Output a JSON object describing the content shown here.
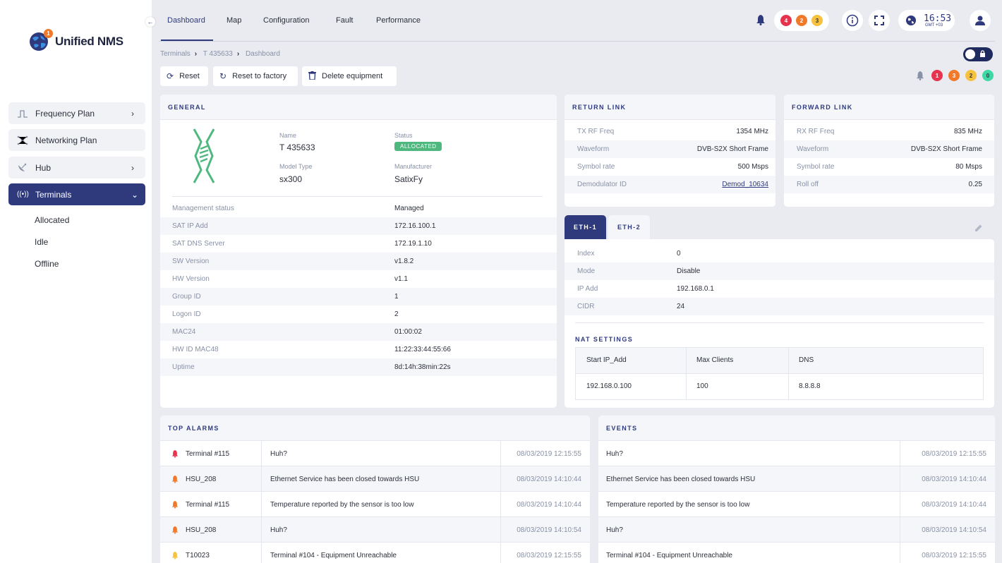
{
  "app": {
    "name": "Unified NMS",
    "notification_count": "1"
  },
  "sidebar": {
    "items": [
      {
        "label": "Frequency Plan",
        "icon": "wave-icon",
        "chevron": "›"
      },
      {
        "label": "Networking Plan",
        "icon": "network-icon",
        "chevron": ""
      },
      {
        "label": "Hub",
        "icon": "satellite-dish-icon",
        "chevron": "›"
      },
      {
        "label": "Terminals",
        "icon": "broadcast-icon",
        "chevron": "⌄"
      }
    ],
    "sub_items": [
      "Allocated",
      "Idle",
      "Offline"
    ]
  },
  "tabs": [
    "Dashboard",
    "Map",
    "Configuration",
    "Fault",
    "Performance"
  ],
  "header": {
    "alarm_counts": [
      "4",
      "2",
      "3"
    ],
    "clock_time": "16:53",
    "clock_zone": "GMT +03"
  },
  "breadcrumb": [
    "Terminals",
    "T 435633",
    "Dashboard"
  ],
  "toolbar": {
    "reset": "Reset",
    "reset_factory": "Reset to factory",
    "delete": "Delete equipment"
  },
  "status_counts": [
    "1",
    "3",
    "2",
    "0"
  ],
  "general": {
    "title": "GENERAL",
    "name_label": "Name",
    "name": "T 435633",
    "status_label": "Status",
    "status": "ALLOCATED",
    "model_label": "Model Type",
    "model": "sx300",
    "manufacturer_label": "Manufacturer",
    "manufacturer": "SatixFy",
    "rows": [
      {
        "k": "Management status",
        "v": "Managed"
      },
      {
        "k": "SAT IP Add",
        "v": "172.16.100.1"
      },
      {
        "k": "SAT DNS Server",
        "v": "172.19.1.10"
      },
      {
        "k": "SW Version",
        "v": "v1.8.2"
      },
      {
        "k": "HW Version",
        "v": "v1.1"
      },
      {
        "k": "Group ID",
        "v": "1"
      },
      {
        "k": "Logon ID",
        "v": "2"
      },
      {
        "k": "MAC24",
        "v": "01:00:02"
      },
      {
        "k": "HW ID MAC48",
        "v": "11:22:33:44:55:66"
      },
      {
        "k": "Uptime",
        "v": "8d:14h:38min:22s"
      }
    ]
  },
  "return_link": {
    "title": "RETURN LINK",
    "rows": [
      {
        "k": "TX RF Freq",
        "v": "1354 MHz"
      },
      {
        "k": "Waveform",
        "v": "DVB-S2X Short Frame"
      },
      {
        "k": "Symbol rate",
        "v": "500 Msps"
      },
      {
        "k": "Demodulator ID",
        "v": "Demod_10634"
      }
    ]
  },
  "forward_link": {
    "title": "FORWARD LINK",
    "rows": [
      {
        "k": "RX RF Freq",
        "v": "835 MHz"
      },
      {
        "k": "Waveform",
        "v": "DVB-S2X Short Frame"
      },
      {
        "k": "Symbol rate",
        "v": "80 Msps"
      },
      {
        "k": "Roll off",
        "v": "0.25"
      }
    ]
  },
  "eth": {
    "tabs": [
      "ETH-1",
      "ETH-2"
    ],
    "rows": [
      {
        "k": "Index",
        "v": "0"
      },
      {
        "k": "Mode",
        "v": "Disable"
      },
      {
        "k": "IP Add",
        "v": "192.168.0.1"
      },
      {
        "k": "CIDR",
        "v": "24"
      }
    ],
    "nat_title": "NAT SETTINGS",
    "nat_headers": [
      "Start IP_Add",
      "Max Clients",
      "DNS"
    ],
    "nat_row": [
      "192.168.0.100",
      "100",
      "8.8.8.8"
    ]
  },
  "top_alarms": {
    "title": "TOP ALARMS",
    "rows": [
      {
        "source": "Terminal #115",
        "msg": "Huh?",
        "time": "08/03/2019 12:15:55",
        "severity": "#e8334f"
      },
      {
        "source": "HSU_208",
        "msg": "Ethernet Service has been closed towards HSU",
        "time": "08/03/2019 14:10:44",
        "severity": "#f07a2a"
      },
      {
        "source": "Terminal #115",
        "msg": "Temperature reported by the sensor is too low",
        "time": "08/03/2019 14:10:44",
        "severity": "#f07a2a"
      },
      {
        "source": "HSU_208",
        "msg": "Huh?",
        "time": "08/03/2019 14:10:54",
        "severity": "#f07a2a"
      },
      {
        "source": "T10023",
        "msg": "Terminal #104 - Equipment Unreachable",
        "time": "08/03/2019 12:15:55",
        "severity": "#f6c23e"
      }
    ]
  },
  "events": {
    "title": "EVENTS",
    "rows": [
      {
        "msg": "Huh?",
        "time": "08/03/2019 12:15:55"
      },
      {
        "msg": "Ethernet Service has been closed towards HSU",
        "time": "08/03/2019 14:10:44"
      },
      {
        "msg": "Temperature reported by the sensor is too low",
        "time": "08/03/2019 14:10:44"
      },
      {
        "msg": "Huh?",
        "time": "08/03/2019 14:10:54"
      },
      {
        "msg": "Terminal #104 - Equipment Unreachable",
        "time": "08/03/2019 12:15:55"
      }
    ]
  },
  "colors": {
    "accent": "#2f3a7d",
    "allocated": "#4fb87e",
    "red": "#e8334f",
    "orange": "#f07a2a",
    "yellow": "#f6c23e",
    "green": "#3ed8a3"
  }
}
